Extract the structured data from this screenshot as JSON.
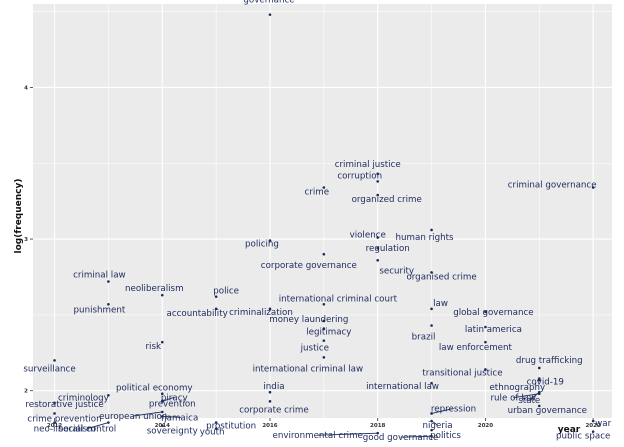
{
  "chart_data": {
    "type": "scatter",
    "title": "",
    "xlabel": "year",
    "ylabel": "log(frequency)",
    "xlim": [
      2011.6,
      2022.35
    ],
    "ylim": [
      1.82,
      4.55
    ],
    "xticks": [
      "2012",
      "2014",
      "2016",
      "2018",
      "2020",
      "2022"
    ],
    "xtick_values": [
      2012,
      2014,
      2016,
      2018,
      2020,
      2022
    ],
    "yticks": [
      "2",
      "3",
      "4"
    ],
    "ytick_values": [
      2,
      3,
      4
    ],
    "grid": true,
    "background": "#ebebeb",
    "point_color": "#1d2a5b",
    "points": [
      {
        "label": "governance",
        "x": 2016.0,
        "y": 4.48
      },
      {
        "label": "criminal justice",
        "x": 2018.0,
        "y": 3.43
      },
      {
        "label": "corruption",
        "x": 2018.0,
        "y": 3.38
      },
      {
        "label": "crime",
        "x": 2017.0,
        "y": 3.34
      },
      {
        "label": "organized crime",
        "x": 2018.0,
        "y": 3.29
      },
      {
        "label": "criminal governance",
        "x": 2022.0,
        "y": 3.34
      },
      {
        "label": "violence",
        "x": 2018.0,
        "y": 3.01
      },
      {
        "label": "human rights",
        "x": 2019.0,
        "y": 3.06
      },
      {
        "label": "regulation",
        "x": 2018.0,
        "y": 2.94
      },
      {
        "label": "policing",
        "x": 2016.0,
        "y": 2.99
      },
      {
        "label": "corporate governance",
        "x": 2017.0,
        "y": 2.9
      },
      {
        "label": "security",
        "x": 2018.0,
        "y": 2.86
      },
      {
        "label": "organised crime",
        "x": 2019.0,
        "y": 2.78
      },
      {
        "label": "criminal law",
        "x": 2013.0,
        "y": 2.72
      },
      {
        "label": "neoliberalism",
        "x": 2014.0,
        "y": 2.63
      },
      {
        "label": "police",
        "x": 2015.0,
        "y": 2.62
      },
      {
        "label": "international criminal court",
        "x": 2017.0,
        "y": 2.57
      },
      {
        "label": "punishment",
        "x": 2013.0,
        "y": 2.57
      },
      {
        "label": "accountability",
        "x": 2015.0,
        "y": 2.54
      },
      {
        "label": "criminalization",
        "x": 2016.0,
        "y": 2.54
      },
      {
        "label": "law",
        "x": 2019.0,
        "y": 2.54
      },
      {
        "label": "global governance",
        "x": 2020.0,
        "y": 2.52
      },
      {
        "label": "money laundering",
        "x": 2017.0,
        "y": 2.46
      },
      {
        "label": "legitimacy",
        "x": 2017.0,
        "y": 2.41
      },
      {
        "label": "brazil",
        "x": 2019.0,
        "y": 2.43
      },
      {
        "label": "latin america",
        "x": 2020.0,
        "y": 2.42
      },
      {
        "label": "risk",
        "x": 2014.0,
        "y": 2.32
      },
      {
        "label": "justice",
        "x": 2017.0,
        "y": 2.33
      },
      {
        "label": "law enforcement",
        "x": 2020.0,
        "y": 2.32
      },
      {
        "label": "surveillance",
        "x": 2012.0,
        "y": 2.2
      },
      {
        "label": "international criminal law",
        "x": 2017.0,
        "y": 2.22
      },
      {
        "label": "transitional justice",
        "x": 2020.0,
        "y": 2.14
      },
      {
        "label": "drug trafficking",
        "x": 2021.0,
        "y": 2.15
      },
      {
        "label": "international law",
        "x": 2019.0,
        "y": 2.05
      },
      {
        "label": "ethnography",
        "x": 2021.0,
        "y": 2.07
      },
      {
        "label": "covid-19",
        "x": 2021.0,
        "y": 2.08
      },
      {
        "label": "political economy",
        "x": 2014.0,
        "y": 1.98
      },
      {
        "label": "criminology",
        "x": 2013.0,
        "y": 1.97
      },
      {
        "label": "india",
        "x": 2016.0,
        "y": 1.99
      },
      {
        "label": "rule of law",
        "x": 2021.0,
        "y": 1.98
      },
      {
        "label": "state",
        "x": 2021.0,
        "y": 1.99
      },
      {
        "label": "prevention",
        "x": 2014.0,
        "y": 1.93
      },
      {
        "label": "corporate crime",
        "x": 2016.0,
        "y": 1.93
      },
      {
        "label": "restorative justice",
        "x": 2012.0,
        "y": 1.92
      },
      {
        "label": "piracy",
        "x": 2014.0,
        "y": 1.93
      },
      {
        "label": "urban governance",
        "x": 2021.0,
        "y": 1.9
      },
      {
        "label": "crime prevention",
        "x": 2012.0,
        "y": 1.85
      },
      {
        "label": "european union",
        "x": 2014.0,
        "y": 1.86
      },
      {
        "label": "repression",
        "x": 2019.0,
        "y": 1.85
      },
      {
        "label": "neo-liberalism",
        "x": 2012.0,
        "y": 1.79
      },
      {
        "label": "social control",
        "x": 2013.0,
        "y": 1.79
      },
      {
        "label": "jamaica",
        "x": 2014.0,
        "y": 1.83
      },
      {
        "label": "prostitution",
        "x": 2015.0,
        "y": 1.79
      },
      {
        "label": "nigeria",
        "x": 2019.0,
        "y": 1.8
      },
      {
        "label": "war",
        "x": 2022.0,
        "y": 1.8
      },
      {
        "label": "sovereignty",
        "x": 2014.0,
        "y": 1.77
      },
      {
        "label": "youth",
        "x": 2015.0,
        "y": 1.75
      },
      {
        "label": "environmental crime",
        "x": 2018.0,
        "y": 1.72
      },
      {
        "label": "politics",
        "x": 2019.0,
        "y": 1.74
      },
      {
        "label": "public space",
        "x": 2022.0,
        "y": 1.73
      },
      {
        "label": "good governance",
        "x": 2019.0,
        "y": 1.7
      }
    ]
  }
}
